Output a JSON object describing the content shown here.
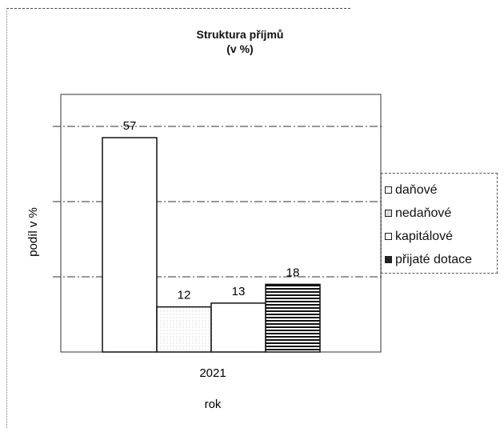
{
  "chart_data": {
    "type": "bar",
    "title": "Struktura příjmů",
    "subtitle": "(v %)",
    "xlabel": "rok",
    "ylabel": "podíl v %",
    "categories": [
      "2021"
    ],
    "series": [
      {
        "name": "daňové",
        "values": [
          57
        ],
        "fill": "#ffffff"
      },
      {
        "name": "nedaňové",
        "values": [
          12
        ],
        "fill": "dots"
      },
      {
        "name": "kapitálové",
        "values": [
          13
        ],
        "fill": "#ffffff"
      },
      {
        "name": "přijaté dotace",
        "values": [
          18
        ],
        "fill": "hstripes"
      }
    ],
    "ylim": [
      0,
      60
    ],
    "grid": true,
    "legend_position": "right"
  }
}
